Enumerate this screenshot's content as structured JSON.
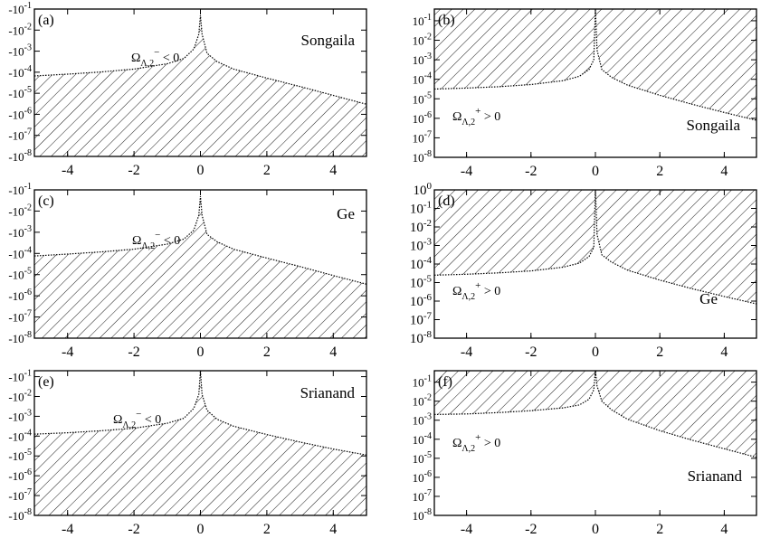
{
  "chart_data": [
    {
      "panel_label": "(a)",
      "name": "Songaila",
      "region_label": "Ω",
      "region_sub": "Λ,2",
      "region_sup": "−",
      "region_rel": "< 0",
      "type": "area",
      "sign": "negative",
      "xlim": [
        -5,
        5
      ],
      "ylim": [
        -1,
        -8
      ],
      "yscale": "log",
      "xticks": [
        "-4",
        "-2",
        "0",
        "2",
        "4"
      ],
      "yticks": [
        {
          "base": "-10",
          "exp": "-8"
        },
        {
          "base": "-10",
          "exp": "-7"
        },
        {
          "base": "-10",
          "exp": "-6"
        },
        {
          "base": "-10",
          "exp": "-5"
        },
        {
          "base": "-10",
          "exp": "-4"
        },
        {
          "base": "-10",
          "exp": "-3"
        },
        {
          "base": "-10",
          "exp": "-2"
        },
        {
          "base": "-10",
          "exp": "-1"
        }
      ],
      "boundary": {
        "x": [
          -5,
          -4,
          -3,
          -2,
          -1,
          -0.5,
          -0.2,
          -0.05,
          0,
          0.05,
          0.2,
          0.5,
          1,
          2,
          3,
          4,
          5
        ],
        "log10_abs_y": [
          -4.18,
          -4.09,
          -3.99,
          -3.85,
          -3.6,
          -3.35,
          -2.9,
          -2.2,
          -1.3,
          -2.2,
          -3.1,
          -3.5,
          -3.85,
          -4.28,
          -4.68,
          -5.1,
          -5.52
        ]
      },
      "fill": "hatched"
    },
    {
      "panel_label": "(b)",
      "name": "Songaila",
      "region_label": "Ω",
      "region_sub": "Λ,2",
      "region_sup": "+",
      "region_rel": "> 0",
      "type": "area",
      "sign": "positive",
      "xlim": [
        -5,
        5
      ],
      "ylim": [
        -0.4,
        -8
      ],
      "yscale": "log",
      "xticks": [
        "-4",
        "-2",
        "0",
        "2",
        "4"
      ],
      "yticks": [
        {
          "base": "10",
          "exp": "-1"
        },
        {
          "base": "10",
          "exp": "-2"
        },
        {
          "base": "10",
          "exp": "-3"
        },
        {
          "base": "10",
          "exp": "-4"
        },
        {
          "base": "10",
          "exp": "-5"
        },
        {
          "base": "10",
          "exp": "-6"
        },
        {
          "base": "10",
          "exp": "-7"
        },
        {
          "base": "10",
          "exp": "-8"
        }
      ],
      "boundary": {
        "x": [
          -5,
          -4,
          -3,
          -2,
          -1,
          -0.5,
          -0.2,
          -0.05,
          0,
          0.05,
          0.2,
          0.5,
          1,
          2,
          3,
          4,
          5
        ],
        "log10_abs_y": [
          -4.5,
          -4.45,
          -4.38,
          -4.27,
          -4.07,
          -3.85,
          -3.5,
          -3.0,
          -0.4,
          -2.5,
          -3.5,
          -3.9,
          -4.3,
          -4.82,
          -5.28,
          -5.7,
          -6.1
        ]
      },
      "fill": "hatched"
    },
    {
      "panel_label": "(c)",
      "name": "Ge",
      "region_label": "Ω",
      "region_sub": "Λ,2",
      "region_sup": "−",
      "region_rel": "< 0",
      "type": "area",
      "sign": "negative",
      "xlim": [
        -5,
        5
      ],
      "ylim": [
        -1,
        -8
      ],
      "yscale": "log",
      "xticks": [
        "-4",
        "-2",
        "0",
        "2",
        "4"
      ],
      "yticks": [
        {
          "base": "-10",
          "exp": "-8"
        },
        {
          "base": "-10",
          "exp": "-7"
        },
        {
          "base": "-10",
          "exp": "-6"
        },
        {
          "base": "-10",
          "exp": "-5"
        },
        {
          "base": "-10",
          "exp": "-4"
        },
        {
          "base": "-10",
          "exp": "-3"
        },
        {
          "base": "-10",
          "exp": "-2"
        },
        {
          "base": "-10",
          "exp": "-1"
        }
      ],
      "boundary": {
        "x": [
          -5,
          -4,
          -3,
          -2,
          -1,
          -0.5,
          -0.2,
          -0.05,
          0,
          0.05,
          0.2,
          0.5,
          1,
          2,
          3,
          4,
          5
        ],
        "log10_abs_y": [
          -4.12,
          -4.03,
          -3.93,
          -3.8,
          -3.56,
          -3.32,
          -2.9,
          -2.2,
          -1.3,
          -2.2,
          -3.1,
          -3.45,
          -3.8,
          -4.22,
          -4.62,
          -5.04,
          -5.45
        ]
      },
      "fill": "hatched"
    },
    {
      "panel_label": "(d)",
      "name": "Ge",
      "region_label": "Ω",
      "region_sub": "Λ,2",
      "region_sup": "+",
      "region_rel": "> 0",
      "type": "area",
      "sign": "positive",
      "xlim": [
        -5,
        5
      ],
      "ylim": [
        0,
        -8
      ],
      "yscale": "log",
      "xticks": [
        "-4",
        "-2",
        "0",
        "2",
        "4"
      ],
      "yticks": [
        {
          "base": "10",
          "exp": "0"
        },
        {
          "base": "10",
          "exp": "-1"
        },
        {
          "base": "10",
          "exp": "-2"
        },
        {
          "base": "10",
          "exp": "-3"
        },
        {
          "base": "10",
          "exp": "-4"
        },
        {
          "base": "10",
          "exp": "-5"
        },
        {
          "base": "10",
          "exp": "-6"
        },
        {
          "base": "10",
          "exp": "-7"
        },
        {
          "base": "10",
          "exp": "-8"
        }
      ],
      "boundary": {
        "x": [
          -5,
          -4,
          -3,
          -2,
          -1,
          -0.5,
          -0.2,
          -0.05,
          0,
          0.05,
          0.2,
          0.5,
          1,
          2,
          3,
          4,
          5
        ],
        "log10_abs_y": [
          -4.6,
          -4.55,
          -4.48,
          -4.37,
          -4.17,
          -3.95,
          -3.6,
          -3.1,
          0,
          -2.4,
          -3.5,
          -3.9,
          -4.33,
          -4.87,
          -5.33,
          -5.75,
          -6.15
        ]
      },
      "fill": "hatched"
    },
    {
      "panel_label": "(e)",
      "name": "Srianand",
      "region_label": "Ω",
      "region_sub": "Λ,2",
      "region_sup": "−",
      "region_rel": "< 0",
      "type": "area",
      "sign": "negative",
      "xlim": [
        -5,
        5
      ],
      "ylim": [
        -0.7,
        -8
      ],
      "yscale": "log",
      "xticks": [
        "-4",
        "-2",
        "0",
        "2",
        "4"
      ],
      "yticks": [
        {
          "base": "-10",
          "exp": "-8"
        },
        {
          "base": "-10",
          "exp": "-7"
        },
        {
          "base": "-10",
          "exp": "-6"
        },
        {
          "base": "-10",
          "exp": "-5"
        },
        {
          "base": "-10",
          "exp": "-4"
        },
        {
          "base": "-10",
          "exp": "-3"
        },
        {
          "base": "-10",
          "exp": "-2"
        },
        {
          "base": "-10",
          "exp": "-1"
        }
      ],
      "boundary": {
        "x": [
          -5,
          -4,
          -3,
          -2,
          -1,
          -0.5,
          -0.2,
          -0.05,
          0,
          0.05,
          0.2,
          0.5,
          1,
          2,
          3,
          4,
          5
        ],
        "log10_abs_y": [
          -3.9,
          -3.83,
          -3.73,
          -3.6,
          -3.35,
          -3.1,
          -2.6,
          -1.9,
          -0.7,
          -1.9,
          -2.7,
          -3.15,
          -3.5,
          -3.92,
          -4.3,
          -4.65,
          -4.95
        ]
      },
      "fill": "hatched"
    },
    {
      "panel_label": "(f)",
      "name": "Srianand",
      "region_label": "Ω",
      "region_sub": "Λ,2",
      "region_sup": "+",
      "region_rel": "> 0",
      "type": "area",
      "sign": "positive",
      "xlim": [
        -5,
        5
      ],
      "ylim": [
        -0.4,
        -8
      ],
      "yscale": "log",
      "xticks": [
        "-4",
        "-2",
        "0",
        "2",
        "4"
      ],
      "yticks": [
        {
          "base": "10",
          "exp": "-1"
        },
        {
          "base": "10",
          "exp": "-2"
        },
        {
          "base": "10",
          "exp": "-3"
        },
        {
          "base": "10",
          "exp": "-4"
        },
        {
          "base": "10",
          "exp": "-5"
        },
        {
          "base": "10",
          "exp": "-6"
        },
        {
          "base": "10",
          "exp": "-7"
        },
        {
          "base": "10",
          "exp": "-8"
        }
      ],
      "boundary": {
        "x": [
          -5,
          -4,
          -3,
          -2,
          -1,
          -0.5,
          -0.2,
          -0.05,
          0,
          0.05,
          0.2,
          0.5,
          1,
          2,
          3,
          4,
          5
        ],
        "log10_abs_y": [
          -2.7,
          -2.67,
          -2.6,
          -2.5,
          -2.35,
          -2.2,
          -1.9,
          -1.4,
          -0.4,
          -1.2,
          -2.0,
          -2.45,
          -2.95,
          -3.55,
          -4.05,
          -4.5,
          -4.95
        ]
      },
      "fill": "hatched"
    }
  ]
}
